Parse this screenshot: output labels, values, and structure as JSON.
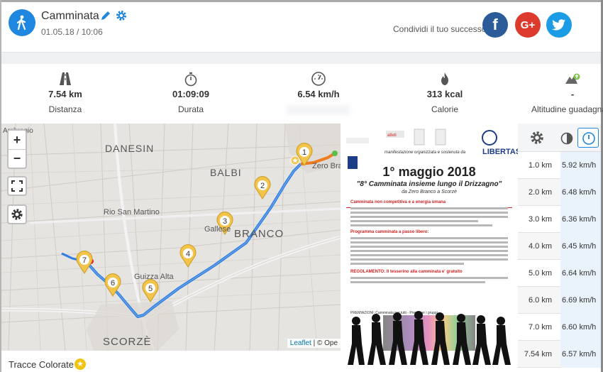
{
  "activity": {
    "title": "Camminata",
    "date": "01.05.18 / 10:06",
    "icon": "walking-icon",
    "accent_color": "#1f87e0"
  },
  "share": {
    "text": "Condividi il tuo successo",
    "facebook_label": "f",
    "google_label": "G+",
    "twitter_icon": "twitter-bird-icon"
  },
  "stats": [
    {
      "value": "7.54 km",
      "label": "Distanza",
      "icon": "road-icon"
    },
    {
      "value": "01:09:09",
      "label": "Durata",
      "icon": "stopwatch-icon"
    },
    {
      "value": "6.54 km/h",
      "label": "",
      "icon": "speedometer-icon"
    },
    {
      "value": "313 kcal",
      "label": "Calorie",
      "icon": "flame-icon"
    },
    {
      "value": "-",
      "label": "Altitudine guadagnata",
      "icon": "mountain-up-icon"
    }
  ],
  "map": {
    "zoom_in": "+",
    "zoom_out": "−",
    "labels": {
      "ambrogio": "Ambrogio",
      "danesin": "DANESIN",
      "balbi": "BALBI",
      "zero_branco": "Zero Bra",
      "rio_san_martino": "Rio San Martino",
      "gallese": "Gallese",
      "branco": "BRANCO",
      "guizza_alta": "Guizza Alta",
      "scorze": "SCORZÈ"
    },
    "markers": [
      "1",
      "2",
      "3",
      "4",
      "5",
      "6",
      "7"
    ],
    "attribution_link": "Leaflet",
    "attribution_rest": " | © Ope",
    "route_color": "#2f7de0",
    "route_end_color": "#f07a1e"
  },
  "poster": {
    "org_text": "manifestazione organizzata e sostenuta da",
    "libertas": "LIBERTAS",
    "date": "1° maggio 2018",
    "subtitle": "\"8° Camminata insieme lungo il Drizzagno\"",
    "subtitle2": "da Zero Branco a Scorzè",
    "heading1": "Camminata non competitiva e a energia umana",
    "heading2": "Programma camminata a passo libero:",
    "heading3": "REGOLAMENTO: Il tesserino alla camminata e' gratuito",
    "premiazioni": "PREMIAZIONI: Camminata per tutti - Premi per i gruppi"
  },
  "splits": {
    "header_icons": [
      "gear-icon",
      "stopwatch-icon",
      "speedometer-icon"
    ],
    "rows": [
      {
        "km": "1.0 km",
        "speed": "5.92 km/h"
      },
      {
        "km": "2.0 km",
        "speed": "6.48 km/h"
      },
      {
        "km": "3.0 km",
        "speed": "6.36 km/h"
      },
      {
        "km": "4.0 km",
        "speed": "6.45 km/h"
      },
      {
        "km": "5.0 km",
        "speed": "6.64 km/h"
      },
      {
        "km": "6.0 km",
        "speed": "6.69 km/h"
      },
      {
        "km": "7.0 km",
        "speed": "6.60 km/h"
      },
      {
        "km": "7.54 km",
        "speed": "6.57 km/h"
      }
    ]
  },
  "footer": {
    "title": "Tracce Colorate"
  }
}
